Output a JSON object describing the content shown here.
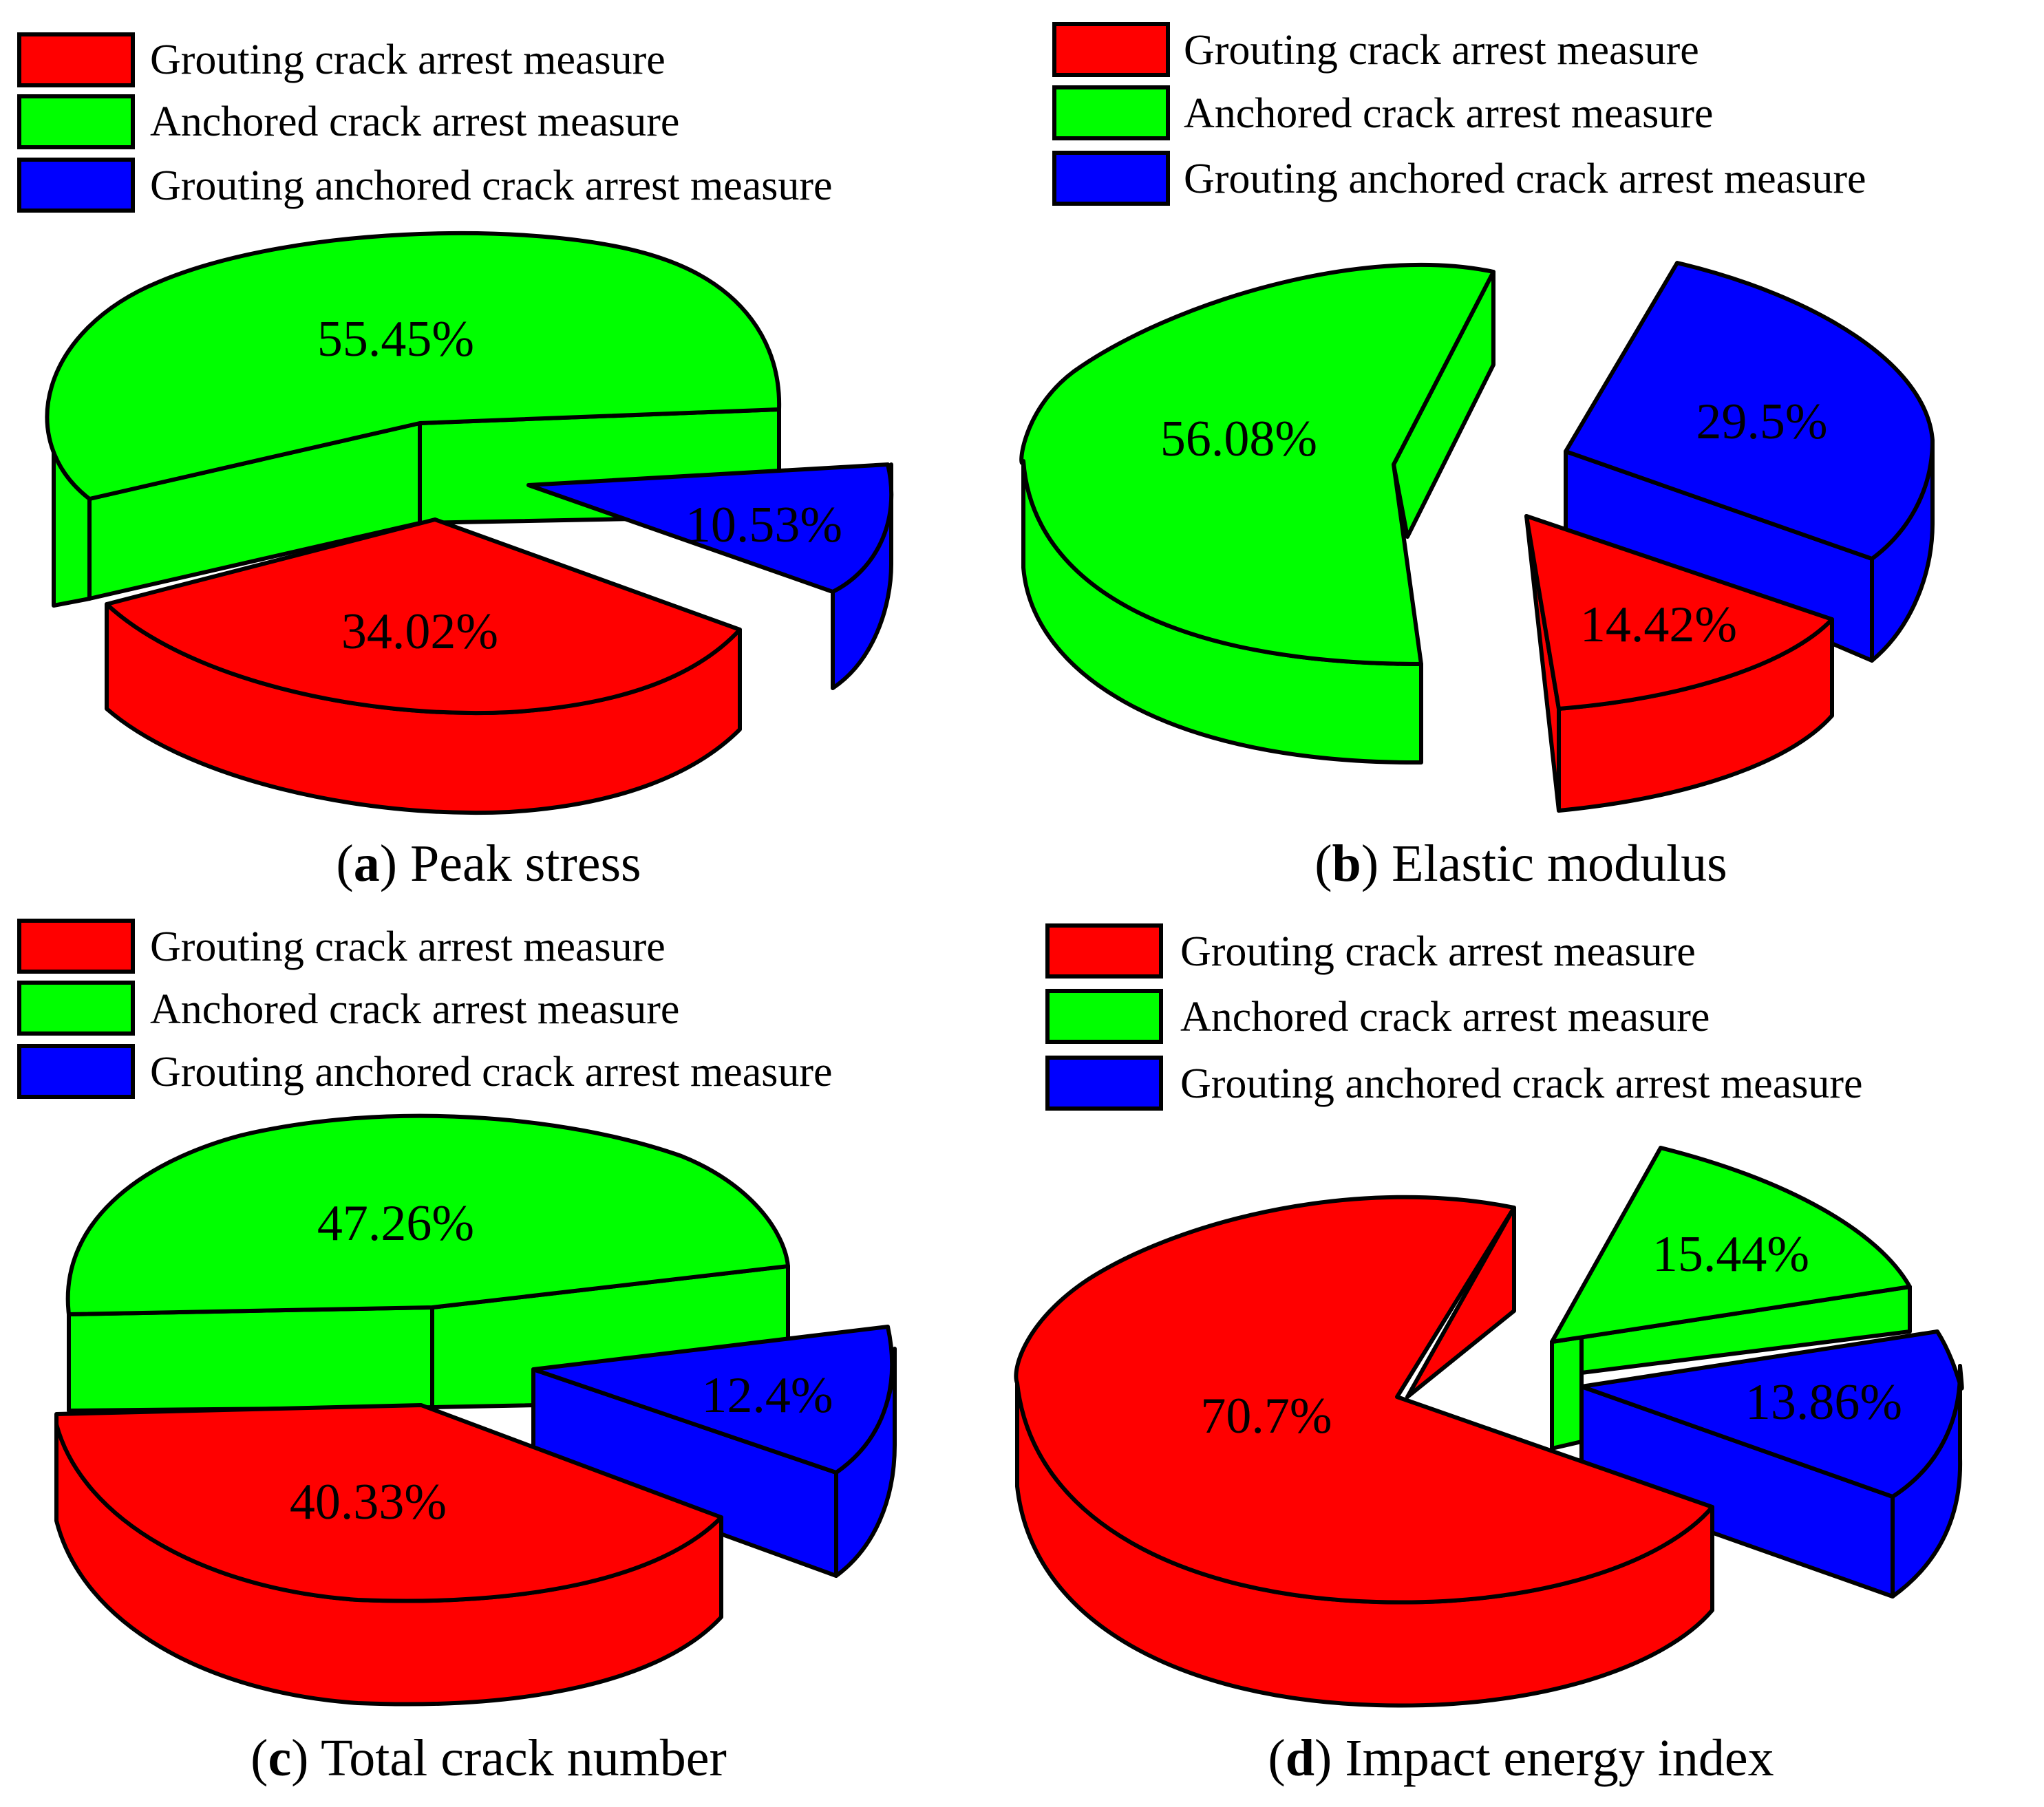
{
  "colors": {
    "grouting": "#ff0000",
    "anchored": "#00ff00",
    "grouting_anchored": "#0000ff",
    "outline": "#000000"
  },
  "legend_labels": [
    "Grouting crack arrest measure",
    "Anchored crack arrest measure",
    "Grouting anchored crack arrest measure"
  ],
  "chart_data": [
    {
      "type": "pie",
      "panel": "a",
      "title": "Peak stress",
      "categories": [
        "Grouting crack arrest measure",
        "Anchored crack arrest measure",
        "Grouting anchored crack arrest measure"
      ],
      "values": [
        34.02,
        55.45,
        10.53
      ],
      "labels": [
        "34.02%",
        "55.45%",
        "10.53%"
      ]
    },
    {
      "type": "pie",
      "panel": "b",
      "title": "Elastic modulus",
      "categories": [
        "Grouting crack arrest measure",
        "Anchored crack arrest measure",
        "Grouting anchored crack arrest measure"
      ],
      "values": [
        14.42,
        56.08,
        29.5
      ],
      "labels": [
        "14.42%",
        "56.08%",
        "29.5%"
      ]
    },
    {
      "type": "pie",
      "panel": "c",
      "title": "Total crack number",
      "categories": [
        "Grouting crack arrest measure",
        "Anchored crack arrest measure",
        "Grouting anchored crack arrest measure"
      ],
      "values": [
        40.33,
        47.26,
        12.4
      ],
      "labels": [
        "40.33%",
        "47.26%",
        "12.4%"
      ]
    },
    {
      "type": "pie",
      "panel": "d",
      "title": "Impact energy index",
      "categories": [
        "Grouting crack arrest measure",
        "Anchored crack arrest measure",
        "Grouting anchored crack arrest measure"
      ],
      "values": [
        70.7,
        15.44,
        13.86
      ],
      "labels": [
        "70.7%",
        "15.44%",
        "13.86%"
      ]
    }
  ]
}
